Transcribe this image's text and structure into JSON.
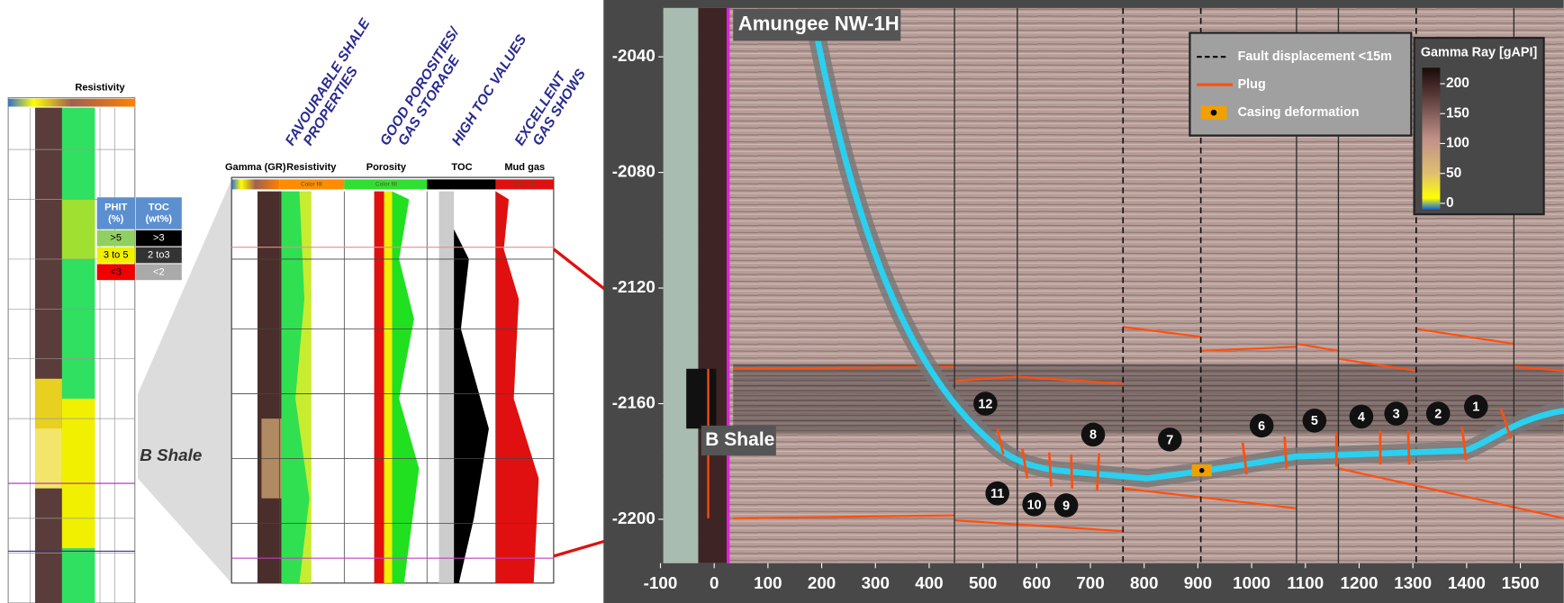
{
  "left_log": {
    "title": "Resistivity",
    "label": "B Shale",
    "legend": {
      "headers": [
        [
          "PHIT",
          "(%)"
        ],
        [
          "TOC",
          "(wt%)"
        ]
      ],
      "rows": [
        [
          ">5",
          ">3"
        ],
        [
          "3 to 5",
          "2 to3"
        ],
        [
          "<3",
          "<2"
        ]
      ]
    }
  },
  "middle_log": {
    "annotations": [
      [
        "FAVOURABLE SHALE",
        "PROPERTIES"
      ],
      [
        "GOOD POROSITIES/",
        "GAS STORAGE"
      ],
      [
        "HIGH TOC VALUES"
      ],
      [
        "EXCELLENT",
        "GAS SHOWS"
      ]
    ],
    "tracks": [
      "Gamma (GR)",
      "Resistivity",
      "Porosity",
      "TOC",
      "Mud gas"
    ],
    "fill_label": "Color fill"
  },
  "section": {
    "title": "Amungee NW-1H",
    "label": "B Shale",
    "legend": [
      "Fault displacement <15m",
      "Plug",
      "Casing deformation"
    ],
    "colorbar": {
      "title": "Gamma Ray [gAPI]",
      "ticks": [
        200,
        150,
        100,
        50,
        0
      ]
    },
    "yticks": [
      -2040,
      -2080,
      -2120,
      -2160,
      -2200
    ],
    "xticks": [
      -100,
      0,
      100,
      200,
      300,
      400,
      500,
      600,
      700,
      800,
      900,
      1000,
      1100,
      1200,
      1300,
      1400,
      1500
    ],
    "stages": [
      1,
      2,
      3,
      4,
      5,
      6,
      7,
      8,
      9,
      10,
      11,
      12
    ]
  }
}
